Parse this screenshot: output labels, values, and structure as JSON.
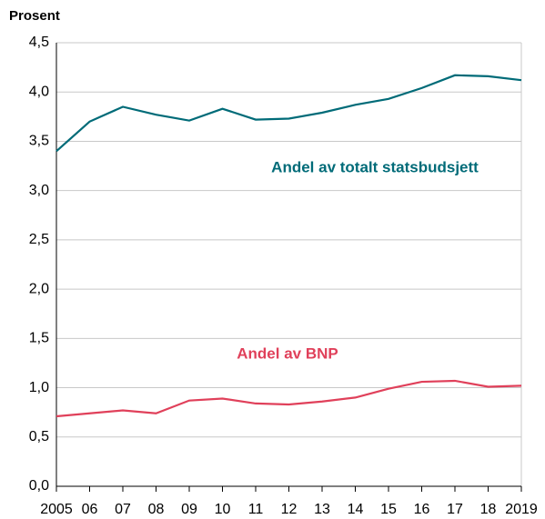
{
  "chart_data": {
    "type": "line",
    "y_label": "Prosent",
    "categories": [
      "2005",
      "06",
      "07",
      "08",
      "09",
      "10",
      "11",
      "12",
      "13",
      "14",
      "15",
      "16",
      "17",
      "18",
      "2019"
    ],
    "series": [
      {
        "name": "Andel av totalt statsbudsjett",
        "color": "#006b78",
        "values": [
          3.4,
          3.7,
          3.85,
          3.77,
          3.71,
          3.83,
          3.72,
          3.73,
          3.79,
          3.87,
          3.93,
          4.04,
          4.17,
          4.16,
          4.12
        ]
      },
      {
        "name": "Andel av BNP",
        "color": "#e0405a",
        "values": [
          0.71,
          0.74,
          0.77,
          0.74,
          0.87,
          0.89,
          0.84,
          0.83,
          0.86,
          0.9,
          0.99,
          1.06,
          1.07,
          1.01,
          1.02
        ]
      }
    ],
    "ylim": [
      0,
      4.5
    ],
    "yticks": [
      {
        "value": 0,
        "label": "0,0"
      },
      {
        "value": 0.5,
        "label": "0,5"
      },
      {
        "value": 1,
        "label": "1,0"
      },
      {
        "value": 1.5,
        "label": "1,5"
      },
      {
        "value": 2,
        "label": "2,0"
      },
      {
        "value": 2.5,
        "label": "2,5"
      },
      {
        "value": 3,
        "label": "3,0"
      },
      {
        "value": 3.5,
        "label": "3,5"
      },
      {
        "value": 4,
        "label": "4,0"
      },
      {
        "value": 4.5,
        "label": "4,5"
      }
    ],
    "grid": true
  }
}
